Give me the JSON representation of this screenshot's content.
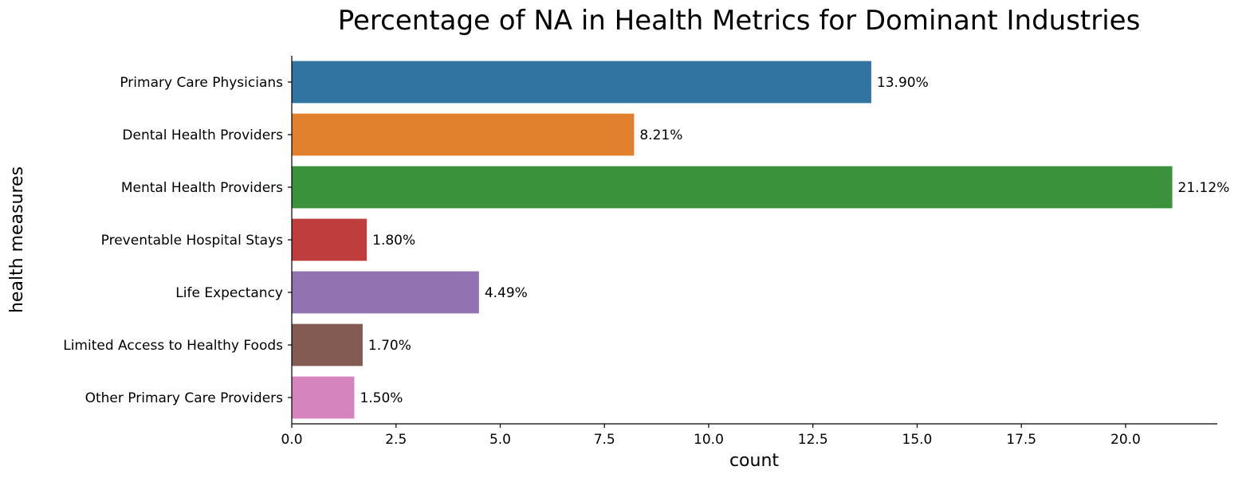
{
  "chart_data": {
    "type": "bar",
    "orientation": "horizontal",
    "title": "Percentage of NA in Health Metrics for Dominant Industries",
    "xlabel": "count",
    "ylabel": "health measures",
    "xlim": [
      0,
      22.2
    ],
    "x_ticks": [
      0,
      2.5,
      5,
      7.5,
      10,
      12.5,
      15,
      17.5,
      20
    ],
    "x_tick_labels": [
      "0.0",
      "2.5",
      "5.0",
      "7.5",
      "10.0",
      "12.5",
      "15.0",
      "17.5",
      "20.0"
    ],
    "grid": false,
    "categories": [
      "Primary Care Physicians",
      "Dental Health Providers",
      "Mental Health Providers",
      "Preventable Hospital Stays",
      "Life Expectancy",
      "Limited Access to Healthy Foods",
      "Other Primary Care Providers"
    ],
    "values": [
      13.9,
      8.21,
      21.12,
      1.8,
      4.49,
      1.7,
      1.5
    ],
    "data_labels": [
      "13.90%",
      "8.21%",
      "21.12%",
      "1.80%",
      "4.49%",
      "1.70%",
      "1.50%"
    ],
    "colors": [
      "#3274a1",
      "#e1812c",
      "#3a923a",
      "#c03d3e",
      "#9372b2",
      "#845b53",
      "#d684bd"
    ]
  }
}
